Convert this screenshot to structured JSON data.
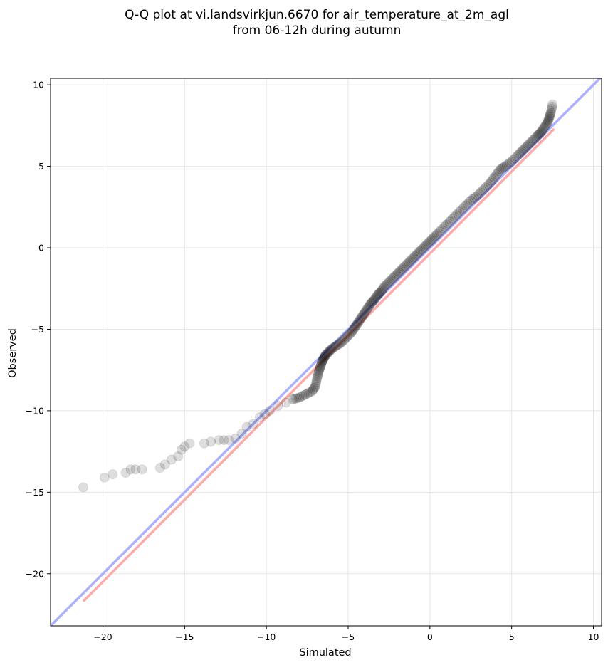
{
  "chart_data": {
    "type": "scatter",
    "title": "Q-Q plot at vi.landsvirkjun.6670 for air_temperature_at_2m_agl",
    "subtitle": "from 06-12h during autumn",
    "xlabel": "Simulated",
    "ylabel": "Observed",
    "xlim": [
      -23.2,
      10.5
    ],
    "ylim": [
      -23.2,
      10.4
    ],
    "xticks": [
      -20,
      -15,
      -10,
      -5,
      0,
      5,
      10
    ],
    "yticks": [
      -20,
      -15,
      -10,
      -5,
      0,
      5,
      10
    ],
    "grid": true,
    "colors": {
      "points": "#000000",
      "identity_line": "#aab0ff",
      "fit_line": "#ffaaaa"
    },
    "identity_line": {
      "x": [
        -23.2,
        10.5
      ],
      "y": [
        -23.2,
        10.5
      ]
    },
    "fit_line": {
      "x": [
        -21.2,
        7.6
      ],
      "y": [
        -21.7,
        7.3
      ]
    },
    "points": {
      "x": [
        -21.2,
        -19.9,
        -19.4,
        -18.6,
        -18.3,
        -18.0,
        -17.6,
        -16.5,
        -16.2,
        -15.8,
        -15.4,
        -15.2,
        -15.0,
        -14.7,
        -13.8,
        -13.4,
        -12.9,
        -12.6,
        -12.3,
        -11.9,
        -11.5,
        -11.2,
        -10.8,
        -10.4,
        -10.1,
        -9.8,
        -9.3,
        -8.8,
        -8.4,
        -8.0,
        -7.6,
        -7.2,
        -7.0,
        -6.9,
        -6.8,
        -6.7,
        -6.6,
        -6.5,
        -6.4,
        -6.2,
        -6.0,
        -5.7,
        -5.4,
        -5.1,
        -4.8,
        -4.6,
        -4.4,
        -4.2,
        -4.0,
        -3.8,
        -3.6,
        -3.4,
        -3.2,
        -3.0,
        -2.8,
        -2.5,
        -2.2,
        -1.9,
        -1.6,
        -1.3,
        -1.0,
        -0.7,
        -0.4,
        -0.1,
        0.2,
        0.5,
        0.9,
        1.3,
        1.7,
        2.1,
        2.5,
        2.9,
        3.3,
        3.7,
        4.0,
        4.3,
        4.6,
        5.0,
        5.4,
        5.7,
        6.0,
        6.3,
        6.6,
        6.8,
        7.0,
        7.2,
        7.3,
        7.4,
        7.5
      ],
      "y": [
        -14.7,
        -14.1,
        -13.9,
        -13.8,
        -13.6,
        -13.6,
        -13.6,
        -13.5,
        -13.3,
        -13.0,
        -12.8,
        -12.4,
        -12.2,
        -12.0,
        -12.0,
        -11.9,
        -11.8,
        -11.8,
        -11.8,
        -11.7,
        -11.4,
        -11.0,
        -10.8,
        -10.4,
        -10.2,
        -10.0,
        -9.7,
        -9.5,
        -9.3,
        -9.2,
        -9.0,
        -8.8,
        -8.5,
        -8.0,
        -7.6,
        -7.3,
        -7.0,
        -6.8,
        -6.6,
        -6.4,
        -6.2,
        -6.0,
        -5.8,
        -5.5,
        -5.2,
        -4.9,
        -4.6,
        -4.3,
        -4.0,
        -3.7,
        -3.4,
        -3.2,
        -2.9,
        -2.7,
        -2.4,
        -2.1,
        -1.8,
        -1.5,
        -1.2,
        -0.9,
        -0.6,
        -0.3,
        0.0,
        0.3,
        0.6,
        0.9,
        1.3,
        1.7,
        2.1,
        2.5,
        2.9,
        3.2,
        3.6,
        4.0,
        4.4,
        4.8,
        5.0,
        5.3,
        5.7,
        6.0,
        6.3,
        6.6,
        6.9,
        7.1,
        7.4,
        7.7,
        8.0,
        8.3,
        8.8
      ]
    }
  }
}
